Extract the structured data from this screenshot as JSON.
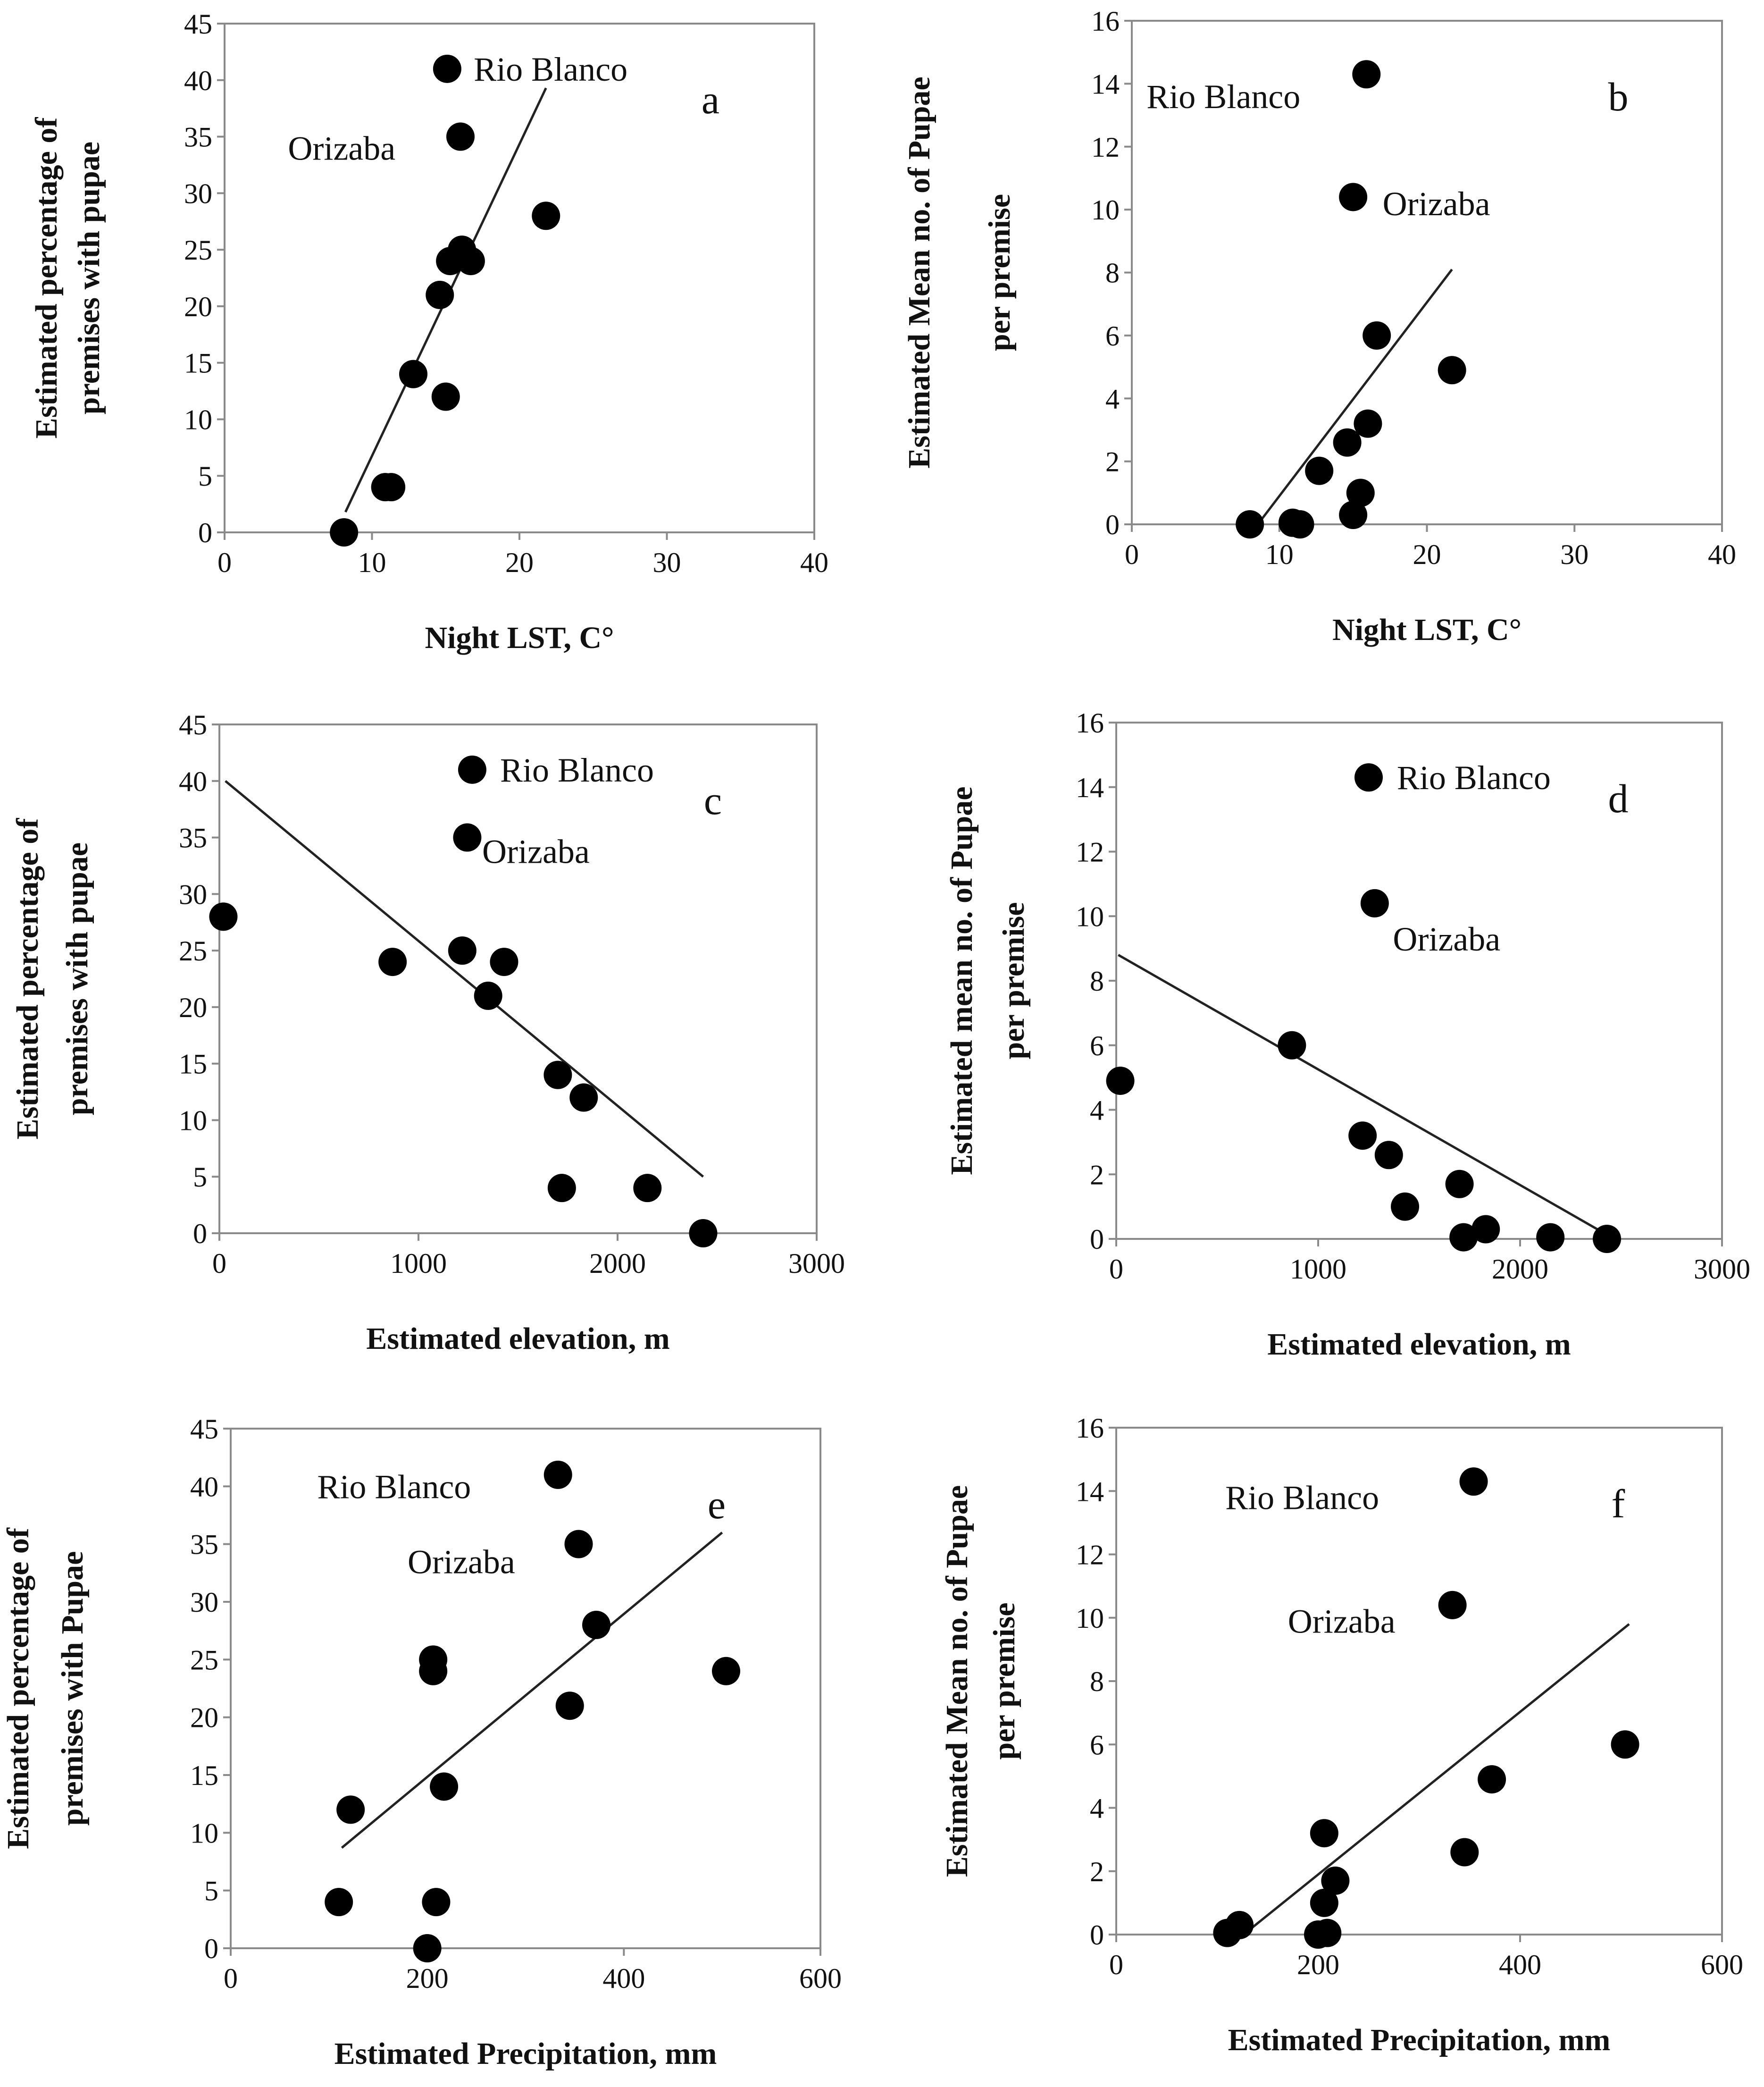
{
  "chart_data": [
    {
      "type": "scatter",
      "panel_label": "a",
      "xlabel": "Night LST, C°",
      "ylabel_lines": [
        "Estimated percentage of",
        "premises with pupae"
      ],
      "xlim": [
        0,
        40
      ],
      "ylim": [
        0,
        45
      ],
      "xticks": [
        0,
        10,
        20,
        30,
        40
      ],
      "yticks": [
        0,
        5,
        10,
        15,
        20,
        25,
        30,
        35,
        40,
        45
      ],
      "points": [
        {
          "x": 15.1,
          "y": 41
        },
        {
          "x": 16.0,
          "y": 35
        },
        {
          "x": 21.8,
          "y": 28
        },
        {
          "x": 16.1,
          "y": 25
        },
        {
          "x": 15.3,
          "y": 24
        },
        {
          "x": 16.7,
          "y": 24
        },
        {
          "x": 14.6,
          "y": 21
        },
        {
          "x": 12.8,
          "y": 14
        },
        {
          "x": 15.0,
          "y": 12
        },
        {
          "x": 10.9,
          "y": 4
        },
        {
          "x": 11.3,
          "y": 4
        },
        {
          "x": 8.1,
          "y": 0
        }
      ],
      "trendline": [
        [
          8.2,
          1.8
        ],
        [
          21.8,
          39.3
        ]
      ],
      "annotations": [
        {
          "text": "Rio Blanco",
          "x": 16.9,
          "y": 41
        },
        {
          "text": "Orizaba",
          "x": 4.3,
          "y": 34
        }
      ],
      "grid": false,
      "legend": "none"
    },
    {
      "type": "scatter",
      "panel_label": "b",
      "xlabel": "Night LST, C°",
      "ylabel_lines": [
        "Estimated Mean no. of Pupae",
        "per premise"
      ],
      "xlim": [
        0,
        40
      ],
      "ylim": [
        0,
        16
      ],
      "xticks": [
        0,
        10,
        20,
        30,
        40
      ],
      "yticks": [
        0,
        2,
        4,
        6,
        8,
        10,
        12,
        14,
        16
      ],
      "points": [
        {
          "x": 15.9,
          "y": 14.3
        },
        {
          "x": 15.0,
          "y": 10.4
        },
        {
          "x": 16.6,
          "y": 6.0
        },
        {
          "x": 21.7,
          "y": 4.9
        },
        {
          "x": 16.0,
          "y": 3.2
        },
        {
          "x": 14.6,
          "y": 2.6
        },
        {
          "x": 12.7,
          "y": 1.7
        },
        {
          "x": 15.5,
          "y": 1.0
        },
        {
          "x": 15.0,
          "y": 0.3
        },
        {
          "x": 10.9,
          "y": 0.05
        },
        {
          "x": 11.4,
          "y": 0.0
        },
        {
          "x": 8.0,
          "y": 0.0
        }
      ],
      "trendline": [
        [
          8.7,
          0.1
        ],
        [
          21.7,
          8.1
        ]
      ],
      "annotations": [
        {
          "text": "Rio Blanco",
          "x": 1.0,
          "y": 13.6
        },
        {
          "text": "Orizaba",
          "x": 17.0,
          "y": 10.2
        }
      ],
      "grid": false,
      "legend": "none"
    },
    {
      "type": "scatter",
      "panel_label": "c",
      "xlabel": "Estimated elevation, m",
      "ylabel_lines": [
        "Estimated percentage of",
        "premises with pupae"
      ],
      "xlim": [
        0,
        3000
      ],
      "ylim": [
        0,
        45
      ],
      "xticks": [
        0,
        1000,
        2000,
        3000
      ],
      "yticks": [
        0,
        5,
        10,
        15,
        20,
        25,
        30,
        35,
        40,
        45
      ],
      "points": [
        {
          "x": 1270,
          "y": 41
        },
        {
          "x": 1245,
          "y": 35
        },
        {
          "x": 20,
          "y": 28
        },
        {
          "x": 870,
          "y": 24
        },
        {
          "x": 1220,
          "y": 25
        },
        {
          "x": 1430,
          "y": 24
        },
        {
          "x": 1350,
          "y": 21
        },
        {
          "x": 1700,
          "y": 14
        },
        {
          "x": 1830,
          "y": 12
        },
        {
          "x": 1720,
          "y": 4
        },
        {
          "x": 2150,
          "y": 4
        },
        {
          "x": 2430,
          "y": 0
        }
      ],
      "trendline": [
        [
          30,
          40
        ],
        [
          2430,
          5
        ]
      ],
      "annotations": [
        {
          "text": "Rio Blanco",
          "x": 1410,
          "y": 41
        },
        {
          "text": "Orizaba",
          "x": 1320,
          "y": 33.8
        }
      ],
      "grid": false,
      "legend": "none"
    },
    {
      "type": "scatter",
      "panel_label": "d",
      "xlabel": "Estimated elevation, m",
      "ylabel_lines": [
        "Estimated mean no. of Pupae",
        "per premise"
      ],
      "xlim": [
        0,
        3000
      ],
      "ylim": [
        0,
        16
      ],
      "xticks": [
        0,
        1000,
        2000,
        3000
      ],
      "yticks": [
        0,
        2,
        4,
        6,
        8,
        10,
        12,
        14,
        16
      ],
      "points": [
        {
          "x": 1250,
          "y": 14.3
        },
        {
          "x": 1280,
          "y": 10.4
        },
        {
          "x": 20,
          "y": 4.9
        },
        {
          "x": 870,
          "y": 6.0
        },
        {
          "x": 1220,
          "y": 3.2
        },
        {
          "x": 1350,
          "y": 2.6
        },
        {
          "x": 1430,
          "y": 1.0
        },
        {
          "x": 1700,
          "y": 1.7
        },
        {
          "x": 1830,
          "y": 0.3
        },
        {
          "x": 1720,
          "y": 0.05
        },
        {
          "x": 2150,
          "y": 0.05
        },
        {
          "x": 2430,
          "y": 0.0
        }
      ],
      "trendline": [
        [
          10,
          8.8
        ],
        [
          2410,
          0.2
        ]
      ],
      "annotations": [
        {
          "text": "Rio Blanco",
          "x": 1390,
          "y": 14.3
        },
        {
          "text": "Orizaba",
          "x": 1370,
          "y": 9.3
        }
      ],
      "grid": false,
      "legend": "none"
    },
    {
      "type": "scatter",
      "panel_label": "e",
      "xlabel": "Estimated Precipitation, mm",
      "ylabel_lines": [
        "Estimated percentage of",
        "premises with Pupae"
      ],
      "xlim": [
        0,
        600
      ],
      "ylim": [
        0,
        45
      ],
      "xticks": [
        0,
        200,
        400,
        600
      ],
      "yticks": [
        0,
        5,
        10,
        15,
        20,
        25,
        30,
        35,
        40,
        45
      ],
      "points": [
        {
          "x": 333,
          "y": 41
        },
        {
          "x": 354,
          "y": 35
        },
        {
          "x": 372,
          "y": 28
        },
        {
          "x": 206,
          "y": 25
        },
        {
          "x": 206,
          "y": 24
        },
        {
          "x": 504,
          "y": 24
        },
        {
          "x": 345,
          "y": 21
        },
        {
          "x": 217,
          "y": 14
        },
        {
          "x": 122,
          "y": 12
        },
        {
          "x": 110,
          "y": 4
        },
        {
          "x": 209,
          "y": 4
        },
        {
          "x": 200,
          "y": 0
        }
      ],
      "trendline": [
        [
          113,
          8.7
        ],
        [
          500,
          36
        ]
      ],
      "annotations": [
        {
          "text": "Rio Blanco",
          "x": 88,
          "y": 40
        },
        {
          "text": "Orizaba",
          "x": 180,
          "y": 33.5
        }
      ],
      "grid": false,
      "legend": "none"
    },
    {
      "type": "scatter",
      "panel_label": "f",
      "xlabel": "Estimated Precipitation, mm",
      "ylabel_lines": [
        "Estimated Mean no. of Pupae",
        "per premise"
      ],
      "xlim": [
        0,
        600
      ],
      "ylim": [
        0,
        16
      ],
      "xticks": [
        0,
        200,
        400,
        600
      ],
      "yticks": [
        0,
        2,
        4,
        6,
        8,
        10,
        12,
        14,
        16
      ],
      "points": [
        {
          "x": 354,
          "y": 14.3
        },
        {
          "x": 333,
          "y": 10.4
        },
        {
          "x": 504,
          "y": 6.0
        },
        {
          "x": 372,
          "y": 4.9
        },
        {
          "x": 206,
          "y": 3.2
        },
        {
          "x": 345,
          "y": 2.6
        },
        {
          "x": 217,
          "y": 1.7
        },
        {
          "x": 206,
          "y": 1.0
        },
        {
          "x": 122,
          "y": 0.3
        },
        {
          "x": 110,
          "y": 0.05
        },
        {
          "x": 209,
          "y": 0.05
        },
        {
          "x": 200,
          "y": 0.0
        }
      ],
      "trendline": [
        [
          130,
          0.1
        ],
        [
          508,
          9.8
        ]
      ],
      "annotations": [
        {
          "text": "Rio Blanco",
          "x": 108,
          "y": 13.8
        },
        {
          "text": "Orizaba",
          "x": 170,
          "y": 9.9
        }
      ],
      "grid": false,
      "legend": "none"
    }
  ]
}
